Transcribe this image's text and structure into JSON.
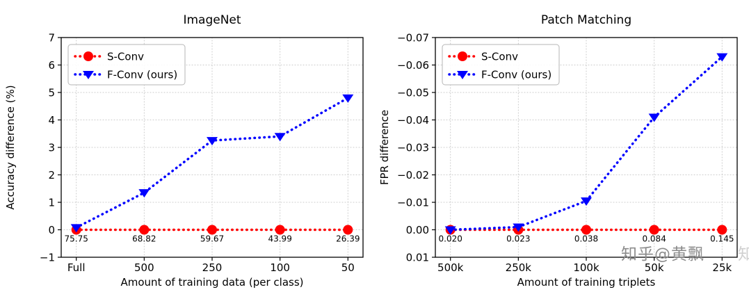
{
  "figure": {
    "background": "#ffffff",
    "watermark": {
      "text": "知乎@黄飘",
      "partial": "知",
      "color": "#8c8c8c"
    }
  },
  "chart_data": [
    {
      "type": "line",
      "title": "ImageNet",
      "xlabel": "Amount of training data (per class)",
      "ylabel": "Accuracy difference (%)",
      "categories": [
        "Full",
        "500",
        "250",
        "100",
        "50"
      ],
      "ylim": [
        -1,
        7
      ],
      "yticks": [
        -1,
        0,
        1,
        2,
        3,
        4,
        5,
        6,
        7
      ],
      "ytick_labels": [
        "−1",
        "0",
        "1",
        "2",
        "3",
        "4",
        "5",
        "6",
        "7"
      ],
      "grid": true,
      "legend_position": "upper-left",
      "series": [
        {
          "name": "S-Conv",
          "color": "#ff0000",
          "marker": "circle",
          "linestyle": "dotted",
          "values": [
            0,
            0,
            0,
            0,
            0
          ]
        },
        {
          "name": "F-Conv (ours)",
          "color": "#0000ff",
          "marker": "triangle-down",
          "linestyle": "dotted",
          "values": [
            0.08,
            1.35,
            3.25,
            3.4,
            4.8
          ]
        }
      ],
      "point_annotations": {
        "anchor_y": 0,
        "values": [
          "75.75",
          "68.82",
          "59.67",
          "43.99",
          "26.39"
        ]
      }
    },
    {
      "type": "line",
      "title": "Patch Matching",
      "xlabel": "Amount of training triplets",
      "ylabel": "FPR difference",
      "categories": [
        "500k",
        "250k",
        "100k",
        "50k",
        "25k"
      ],
      "ylim": [
        0.01,
        -0.07
      ],
      "yticks": [
        -0.07,
        -0.06,
        -0.05,
        -0.04,
        -0.03,
        -0.02,
        -0.01,
        0,
        0.01
      ],
      "ytick_labels": [
        "−0.07",
        "−0.06",
        "−0.05",
        "−0.04",
        "−0.03",
        "−0.02",
        "−0.01",
        "0.00",
        "0.01"
      ],
      "grid": true,
      "legend_position": "upper-left",
      "series": [
        {
          "name": "S-Conv",
          "color": "#ff0000",
          "marker": "circle",
          "linestyle": "dotted",
          "values": [
            0,
            0,
            0,
            0,
            0
          ]
        },
        {
          "name": "F-Conv (ours)",
          "color": "#0000ff",
          "marker": "triangle-down",
          "linestyle": "dotted",
          "values": [
            0.0,
            -0.001,
            -0.0105,
            -0.041,
            -0.063
          ]
        }
      ],
      "point_annotations": {
        "anchor_y": 0,
        "values": [
          "0.020",
          "0.023",
          "0.038",
          "0.084",
          "0.145"
        ]
      }
    }
  ]
}
